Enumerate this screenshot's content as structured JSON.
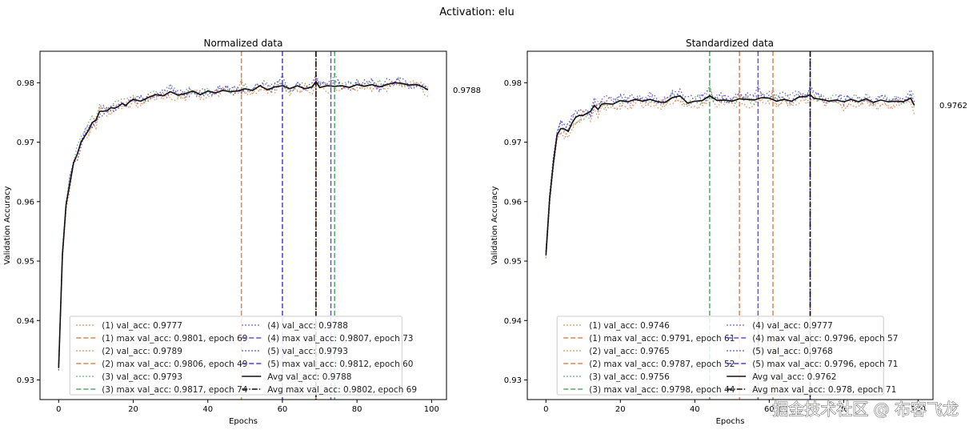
{
  "suptitle": "Activation: elu",
  "watermark": "掘金技术社区 @ 布客飞龙",
  "colors": {
    "run1": "#dd8452",
    "run2": "#dd8452",
    "run3": "#55a868",
    "run4": "#6a4fd8",
    "run5": "#4c3fd0",
    "avg": "#111111"
  },
  "chart_data": [
    {
      "type": "line",
      "title": "Normalized data",
      "xlabel": "Epochs",
      "ylabel": "Validation Accuracy",
      "xlim": [
        -5,
        104
      ],
      "ylim": [
        0.9267,
        0.9853
      ],
      "xticks": [
        0,
        20,
        40,
        60,
        80,
        100
      ],
      "yticks": [
        0.93,
        0.94,
        0.95,
        0.96,
        0.97,
        0.98
      ],
      "ytick_labels": [
        "0.93",
        "0.94",
        "0.95",
        "0.96",
        "0.97",
        "0.98"
      ],
      "final_avg_label": "0.9788",
      "final_avg_value": 0.9788,
      "avg_anchor_points": [
        [
          0,
          0.932
        ],
        [
          1,
          0.951
        ],
        [
          2,
          0.9595
        ],
        [
          3,
          0.963
        ],
        [
          4,
          0.9665
        ],
        [
          5,
          0.968
        ],
        [
          6,
          0.97
        ],
        [
          7,
          0.971
        ],
        [
          8,
          0.972
        ],
        [
          9,
          0.9733
        ],
        [
          10,
          0.9737
        ],
        [
          11,
          0.9752
        ],
        [
          12,
          0.9752
        ],
        [
          13,
          0.9753
        ],
        [
          14,
          0.9758
        ],
        [
          15,
          0.9757
        ],
        [
          16,
          0.976
        ],
        [
          17,
          0.9765
        ],
        [
          18,
          0.9762
        ],
        [
          19,
          0.9768
        ],
        [
          20,
          0.9772
        ],
        [
          22,
          0.9769
        ],
        [
          24,
          0.9775
        ],
        [
          26,
          0.978
        ],
        [
          28,
          0.9778
        ],
        [
          30,
          0.9785
        ],
        [
          32,
          0.9779
        ],
        [
          34,
          0.9782
        ],
        [
          36,
          0.9786
        ],
        [
          38,
          0.978
        ],
        [
          40,
          0.9786
        ],
        [
          42,
          0.9783
        ],
        [
          44,
          0.9787
        ],
        [
          46,
          0.9785
        ],
        [
          48,
          0.9786
        ],
        [
          50,
          0.979
        ],
        [
          52,
          0.9787
        ],
        [
          54,
          0.9795
        ],
        [
          56,
          0.9788
        ],
        [
          58,
          0.9793
        ],
        [
          60,
          0.9795
        ],
        [
          62,
          0.979
        ],
        [
          64,
          0.9795
        ],
        [
          66,
          0.979
        ],
        [
          68,
          0.9793
        ],
        [
          69,
          0.9802
        ],
        [
          70,
          0.9792
        ],
        [
          72,
          0.9795
        ],
        [
          74,
          0.9794
        ],
        [
          76,
          0.9795
        ],
        [
          78,
          0.9792
        ],
        [
          80,
          0.9797
        ],
        [
          82,
          0.9794
        ],
        [
          84,
          0.9797
        ],
        [
          86,
          0.9793
        ],
        [
          88,
          0.9797
        ],
        [
          90,
          0.98
        ],
        [
          92,
          0.9799
        ],
        [
          94,
          0.9796
        ],
        [
          96,
          0.9797
        ],
        [
          98,
          0.9792
        ],
        [
          99,
          0.9788
        ]
      ],
      "runs": [
        {
          "name": "(1) val_acc: 0.9777",
          "final": 0.9777,
          "max": 0.9801,
          "max_epoch": 69,
          "max_label": "(1) max val_acc: 0.9801, epoch 69",
          "color_key": "run1",
          "offset": -0.0004,
          "seed": 11
        },
        {
          "name": "(2) val_acc: 0.9789",
          "final": 0.9789,
          "max": 0.9806,
          "max_epoch": 49,
          "max_label": "(2) max val_acc: 0.9806, epoch 49",
          "color_key": "run2",
          "offset": -0.0002,
          "seed": 23
        },
        {
          "name": "(3) val_acc: 0.9793",
          "final": 0.9793,
          "max": 0.9817,
          "max_epoch": 74,
          "max_label": "(3) max val_acc: 0.9817, epoch 74",
          "color_key": "run3",
          "offset": 0.0003,
          "seed": 37
        },
        {
          "name": "(4) val_acc: 0.9788",
          "final": 0.9788,
          "max": 0.9807,
          "max_epoch": 73,
          "max_label": "(4) max val_acc: 0.9807, epoch 73",
          "color_key": "run4",
          "offset": 0.0001,
          "seed": 41
        },
        {
          "name": "(5) val_acc: 0.9793",
          "final": 0.9793,
          "max": 0.9812,
          "max_epoch": 60,
          "max_label": "(5) max val_acc: 0.9812, epoch 60",
          "color_key": "run5",
          "offset": 0.0002,
          "seed": 53
        }
      ],
      "avg": {
        "label": "Avg val_acc: 0.9788",
        "final": 0.9788
      },
      "avg_max": {
        "label": "Avg max val_acc: 0.9802, epoch 69",
        "value": 0.9802,
        "epoch": 69
      },
      "legend_placement": "lower-center"
    },
    {
      "type": "line",
      "title": "Standardized data",
      "xlabel": "Epochs",
      "ylabel": "Validation Accuracy",
      "xlim": [
        -5,
        104
      ],
      "ylim": [
        0.9267,
        0.9853
      ],
      "xticks": [
        0,
        20,
        40,
        60,
        80,
        100
      ],
      "yticks": [
        0.93,
        0.94,
        0.95,
        0.96,
        0.97,
        0.98
      ],
      "ytick_labels": [
        "0.93",
        "0.94",
        "0.95",
        "0.96",
        "0.97",
        "0.98"
      ],
      "final_avg_label": "0.9762",
      "final_avg_value": 0.9762,
      "avg_anchor_points": [
        [
          0,
          0.951
        ],
        [
          1,
          0.9605
        ],
        [
          2,
          0.9665
        ],
        [
          3,
          0.9712
        ],
        [
          4,
          0.9723
        ],
        [
          5,
          0.9722
        ],
        [
          6,
          0.9718
        ],
        [
          7,
          0.9732
        ],
        [
          8,
          0.9742
        ],
        [
          9,
          0.9745
        ],
        [
          10,
          0.9745
        ],
        [
          12,
          0.9752
        ],
        [
          13,
          0.9762
        ],
        [
          14,
          0.9755
        ],
        [
          15,
          0.9764
        ],
        [
          16,
          0.9765
        ],
        [
          18,
          0.9764
        ],
        [
          20,
          0.977
        ],
        [
          22,
          0.9768
        ],
        [
          24,
          0.9772
        ],
        [
          26,
          0.9769
        ],
        [
          28,
          0.9772
        ],
        [
          30,
          0.9768
        ],
        [
          32,
          0.9767
        ],
        [
          34,
          0.9775
        ],
        [
          36,
          0.9778
        ],
        [
          38,
          0.9766
        ],
        [
          40,
          0.9769
        ],
        [
          42,
          0.977
        ],
        [
          44,
          0.9778
        ],
        [
          46,
          0.977
        ],
        [
          48,
          0.9771
        ],
        [
          50,
          0.9769
        ],
        [
          52,
          0.9773
        ],
        [
          54,
          0.9772
        ],
        [
          56,
          0.9771
        ],
        [
          58,
          0.9775
        ],
        [
          60,
          0.9774
        ],
        [
          62,
          0.9769
        ],
        [
          64,
          0.9772
        ],
        [
          66,
          0.9769
        ],
        [
          68,
          0.9776
        ],
        [
          70,
          0.9777
        ],
        [
          71,
          0.978
        ],
        [
          72,
          0.9774
        ],
        [
          74,
          0.9772
        ],
        [
          76,
          0.9769
        ],
        [
          78,
          0.9771
        ],
        [
          80,
          0.9768
        ],
        [
          82,
          0.9772
        ],
        [
          84,
          0.9768
        ],
        [
          86,
          0.9773
        ],
        [
          88,
          0.9767
        ],
        [
          90,
          0.9771
        ],
        [
          92,
          0.9768
        ],
        [
          94,
          0.9769
        ],
        [
          96,
          0.9768
        ],
        [
          98,
          0.9774
        ],
        [
          99,
          0.9762
        ]
      ],
      "runs": [
        {
          "name": "(1) val_acc: 0.9746",
          "final": 0.9746,
          "max": 0.9791,
          "max_epoch": 61,
          "max_label": "(1) max val_acc: 0.9791, epoch 61",
          "color_key": "run1",
          "offset": -0.0006,
          "seed": 7
        },
        {
          "name": "(2) val_acc: 0.9765",
          "final": 0.9765,
          "max": 0.9787,
          "max_epoch": 52,
          "max_label": "(2) max val_acc: 0.9787, epoch 52",
          "color_key": "run2",
          "offset": -0.0003,
          "seed": 19
        },
        {
          "name": "(3) val_acc: 0.9756",
          "final": 0.9756,
          "max": 0.9798,
          "max_epoch": 44,
          "max_label": "(3) max val_acc: 0.9798, epoch 44",
          "color_key": "run3",
          "offset": 0.0002,
          "seed": 29
        },
        {
          "name": "(4) val_acc: 0.9777",
          "final": 0.9777,
          "max": 0.9796,
          "max_epoch": 57,
          "max_label": "(4) max val_acc: 0.9796, epoch 57",
          "color_key": "run4",
          "offset": 0.0005,
          "seed": 43
        },
        {
          "name": "(5) val_acc: 0.9768",
          "final": 0.9768,
          "max": 0.9796,
          "max_epoch": 71,
          "max_label": "(5) max val_acc: 0.9796, epoch 71",
          "color_key": "run5",
          "offset": 0.0003,
          "seed": 61
        }
      ],
      "avg": {
        "label": "Avg val_acc: 0.9762",
        "final": 0.9762
      },
      "avg_max": {
        "label": "Avg max val_acc: 0.978, epoch 71",
        "value": 0.978,
        "epoch": 71
      },
      "legend_placement": "lower-center"
    }
  ]
}
